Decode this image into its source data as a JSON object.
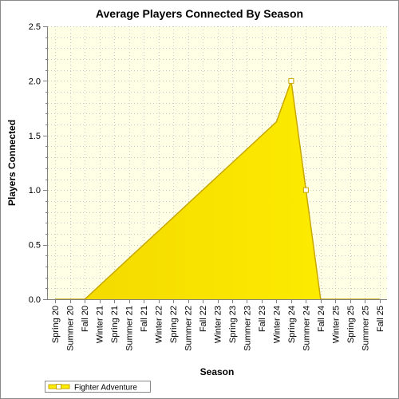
{
  "chart_data": {
    "type": "area",
    "title": "Average Players Connected By Season",
    "xlabel": "Season",
    "ylabel": "Players Connected",
    "categories": [
      "Spring 20",
      "Summer 20",
      "Fall 20",
      "Winter 21",
      "Spring 21",
      "Summer 21",
      "Fall 21",
      "Winter 22",
      "Spring 22",
      "Summer 22",
      "Fall 22",
      "Winter 23",
      "Spring 23",
      "Summer 23",
      "Fall 23",
      "Winter 24",
      "Spring 24",
      "Summer 24",
      "Fall 24",
      "Winter 25",
      "Spring 25",
      "Summer 25",
      "Fall 25"
    ],
    "yticks": [
      "0.0",
      "0.5",
      "1.0",
      "1.5",
      "2.0",
      "2.5"
    ],
    "ylim": [
      0,
      2.5
    ],
    "grid": true,
    "legend_position": "bottom-left",
    "series": [
      {
        "name": "Fighter Adventure",
        "values": [
          0,
          0,
          0,
          0.125,
          0.25,
          0.375,
          0.5,
          0.625,
          0.75,
          0.875,
          1.0,
          1.125,
          1.25,
          1.375,
          1.5,
          1.625,
          2.0,
          1.0,
          0,
          0,
          0,
          0,
          0
        ],
        "marker_indices": [
          16,
          17
        ],
        "color": "#ffee00",
        "line_color": "#c8a800"
      }
    ],
    "plot_background": "#ffffe6",
    "grid_color": "#c8c8c8"
  }
}
